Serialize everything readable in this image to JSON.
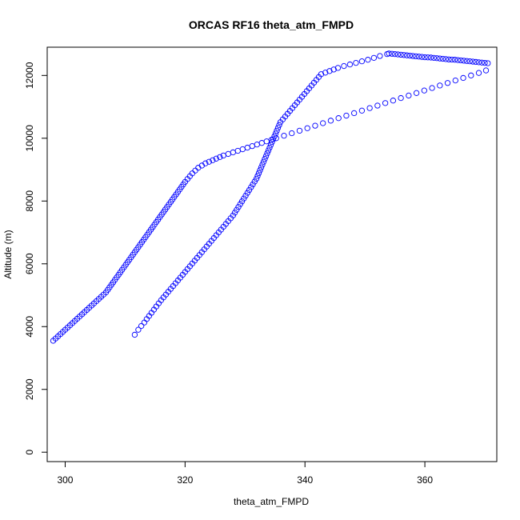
{
  "chart_data": {
    "type": "scatter",
    "title": "ORCAS RF16 theta_atm_FMPD",
    "xlabel": "theta_atm_FMPD",
    "ylabel": "Altitude (m)",
    "xlim": [
      297,
      372
    ],
    "ylim": [
      -300,
      12900
    ],
    "xticks": [
      300,
      320,
      340,
      360
    ],
    "yticks": [
      0,
      2000,
      4000,
      6000,
      8000,
      10000,
      12000
    ],
    "grid": false,
    "marker": "open-circle",
    "color": "#0000ff",
    "x": [
      298.0,
      298.4,
      298.8,
      299.2,
      299.6,
      300.0,
      300.4,
      300.8,
      301.2,
      301.6,
      302.0,
      302.4,
      302.8,
      303.2,
      303.6,
      304.0,
      304.4,
      304.8,
      305.2,
      305.6,
      306.0,
      306.4,
      306.8,
      307.1,
      307.4,
      307.7,
      308.0,
      308.3,
      308.6,
      308.9,
      309.2,
      309.5,
      309.8,
      310.1,
      310.4,
      310.7,
      311.0,
      311.3,
      311.6,
      311.9,
      312.2,
      312.5,
      312.8,
      313.1,
      313.4,
      313.7,
      314.0,
      314.3,
      314.6,
      314.9,
      315.2,
      315.5,
      315.8,
      316.1,
      316.4,
      316.7,
      317.0,
      317.3,
      317.6,
      317.9,
      318.2,
      318.5,
      318.8,
      319.1,
      319.4,
      319.7,
      320.0,
      320.4,
      320.8,
      321.2,
      321.7,
      322.2,
      322.8,
      323.4,
      324.0,
      324.6,
      325.2,
      325.8,
      326.4,
      327.2,
      328.0,
      328.8,
      329.6,
      330.4,
      331.2,
      332.0,
      332.8,
      333.6,
      334.4,
      335.2,
      336.5,
      337.8,
      339.1,
      340.4,
      341.7,
      343.0,
      344.3,
      345.6,
      346.9,
      348.2,
      349.5,
      350.8,
      352.1,
      353.4,
      354.7,
      356.0,
      357.3,
      358.6,
      359.9,
      361.2,
      362.5,
      363.8,
      365.1,
      366.4,
      367.7,
      369.0,
      370.2,
      370.5,
      370.0,
      369.5,
      369.0,
      368.5,
      368.0,
      367.5,
      367.0,
      366.5,
      366.0,
      365.5,
      365.0,
      364.5,
      364.0,
      363.5,
      363.0,
      362.5,
      362.0,
      361.5,
      361.0,
      360.5,
      360.0,
      359.5,
      359.0,
      358.5,
      358.0,
      357.5,
      357.0,
      356.5,
      356.0,
      355.5,
      355.0,
      354.5,
      354.0,
      353.7,
      352.5,
      351.5,
      350.5,
      349.5,
      348.5,
      347.5,
      346.5,
      345.5,
      344.8,
      344.1,
      343.4,
      342.7,
      342.3,
      341.9,
      341.5,
      341.1,
      340.7,
      340.3,
      339.9,
      339.5,
      339.1,
      338.7,
      338.3,
      337.9,
      337.5,
      337.1,
      336.7,
      336.3,
      335.9,
      335.7,
      335.5,
      335.3,
      335.1,
      334.9,
      334.7,
      334.5,
      334.3,
      334.1,
      333.9,
      333.7,
      333.5,
      333.3,
      333.1,
      332.9,
      332.7,
      332.5,
      332.3,
      332.1,
      331.9,
      331.6,
      331.3,
      331.0,
      330.7,
      330.4,
      330.1,
      329.8,
      329.5,
      329.2,
      328.9,
      328.6,
      328.3,
      328.0,
      327.6,
      327.2,
      326.8,
      326.4,
      326.0,
      325.6,
      325.2,
      324.8,
      324.4,
      324.0,
      323.6,
      323.2,
      322.8,
      322.4,
      322.0,
      321.6,
      321.2,
      320.8,
      320.4,
      320.0,
      319.6,
      319.2,
      318.8,
      318.4,
      318.0,
      317.6,
      317.2,
      316.8,
      316.4,
      316.0,
      315.6,
      315.2,
      314.8,
      314.4,
      314.0,
      313.6,
      313.2,
      312.7,
      312.2,
      311.6
    ],
    "y": [
      3550,
      3620,
      3690,
      3760,
      3830,
      3900,
      3970,
      4040,
      4110,
      4180,
      4250,
      4320,
      4390,
      4460,
      4530,
      4600,
      4670,
      4740,
      4810,
      4880,
      4950,
      5020,
      5090,
      5170,
      5250,
      5330,
      5410,
      5490,
      5570,
      5650,
      5730,
      5810,
      5890,
      5970,
      6050,
      6130,
      6210,
      6290,
      6370,
      6450,
      6530,
      6610,
      6690,
      6770,
      6850,
      6930,
      7010,
      7090,
      7170,
      7250,
      7330,
      7410,
      7490,
      7570,
      7650,
      7730,
      7810,
      7890,
      7970,
      8050,
      8130,
      8210,
      8290,
      8370,
      8450,
      8530,
      8610,
      8700,
      8790,
      8880,
      8970,
      9060,
      9130,
      9200,
      9250,
      9300,
      9350,
      9400,
      9450,
      9500,
      9550,
      9600,
      9650,
      9700,
      9750,
      9800,
      9850,
      9900,
      9950,
      10000,
      10080,
      10160,
      10240,
      10320,
      10400,
      10480,
      10560,
      10640,
      10720,
      10800,
      10880,
      10960,
      11040,
      11120,
      11200,
      11280,
      11360,
      11440,
      11520,
      11600,
      11680,
      11760,
      11840,
      11920,
      12000,
      12080,
      12160,
      12390,
      12400,
      12410,
      12420,
      12430,
      12440,
      12450,
      12460,
      12470,
      12480,
      12490,
      12500,
      12505,
      12510,
      12520,
      12530,
      12540,
      12550,
      12560,
      12570,
      12575,
      12580,
      12590,
      12600,
      12610,
      12620,
      12630,
      12640,
      12650,
      12660,
      12670,
      12680,
      12690,
      12700,
      12680,
      12620,
      12560,
      12500,
      12450,
      12400,
      12350,
      12300,
      12240,
      12190,
      12140,
      12090,
      12040,
      11950,
      11860,
      11770,
      11680,
      11590,
      11500,
      11410,
      11320,
      11230,
      11140,
      11050,
      10960,
      10870,
      10780,
      10690,
      10600,
      10510,
      10420,
      10330,
      10240,
      10150,
      10060,
      9970,
      9880,
      9790,
      9700,
      9610,
      9520,
      9430,
      9340,
      9250,
      9160,
      9070,
      8980,
      8890,
      8800,
      8710,
      8620,
      8530,
      8440,
      8350,
      8260,
      8170,
      8080,
      7990,
      7900,
      7810,
      7720,
      7630,
      7540,
      7450,
      7360,
      7270,
      7180,
      7090,
      7000,
      6910,
      6820,
      6730,
      6640,
      6550,
      6460,
      6370,
      6280,
      6190,
      6100,
      6010,
      5920,
      5830,
      5740,
      5650,
      5560,
      5470,
      5380,
      5290,
      5200,
      5110,
      5020,
      4930,
      4840,
      4740,
      4640,
      4540,
      4440,
      4340,
      4240,
      4130,
      4020,
      3900,
      3740
    ]
  }
}
